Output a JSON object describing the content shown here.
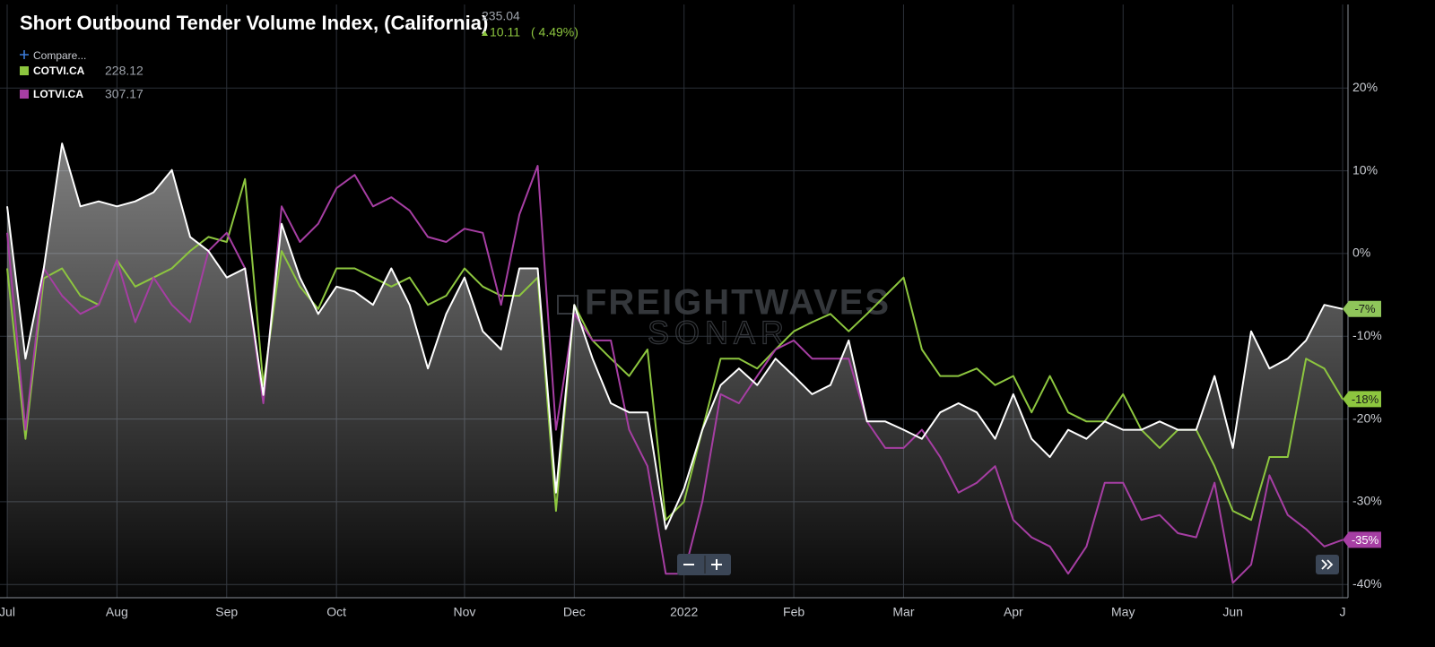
{
  "chart_data": {
    "type": "line",
    "title": "Short Outbound Tender Volume Index, (California)",
    "last_value": "235.04",
    "change": "10.11",
    "change_pct": "( 4.49%)",
    "compare": "Compare...",
    "watermark": [
      "FREIGHTWAVES",
      "SONAR"
    ],
    "categories": [
      "Jul",
      null,
      null,
      null,
      null,
      null,
      "Aug",
      null,
      null,
      null,
      null,
      null,
      "Sep",
      null,
      null,
      null,
      null,
      null,
      "Oct",
      null,
      null,
      null,
      null,
      null,
      null,
      "Nov",
      null,
      null,
      null,
      null,
      null,
      "Dec",
      null,
      null,
      null,
      null,
      null,
      "2022",
      null,
      null,
      null,
      null,
      null,
      "Feb",
      null,
      null,
      null,
      null,
      null,
      "Mar",
      null,
      null,
      null,
      null,
      null,
      "Apr",
      null,
      null,
      null,
      null,
      null,
      "May",
      null,
      null,
      null,
      null,
      null,
      "Jun",
      null,
      null,
      null,
      null,
      null,
      "J"
    ],
    "ylim": [
      -41.6,
      30.1
    ],
    "yticks": [
      {
        "value": -40,
        "label": "-40%"
      },
      {
        "value": -30,
        "label": "-30%"
      },
      {
        "value": -20,
        "label": "-20%"
      },
      {
        "value": -10,
        "label": "-10%"
      },
      {
        "value": 0,
        "label": "0%"
      },
      {
        "value": 10,
        "label": "10%"
      },
      {
        "value": 20,
        "label": "20%"
      }
    ],
    "grid": true,
    "series": [
      {
        "color": "#ffffff",
        "area": true,
        "badge": "-7%",
        "badge_color": "#8fc55a",
        "values": [
          5.7,
          -12.7,
          -1.8,
          13.3,
          5.7,
          6.3,
          5.7,
          6.3,
          7.4,
          10.1,
          2.0,
          0.3,
          -2.9,
          -1.8,
          -17.1,
          3.6,
          -2.9,
          -7.3,
          -4.0,
          -4.6,
          -6.2,
          -1.8,
          -6.2,
          -13.9,
          -7.3,
          -2.9,
          -9.4,
          -11.6,
          -1.8,
          -1.8,
          -28.9,
          -6.2,
          -12.7,
          -18.1,
          -19.2,
          -19.2,
          -33.3,
          -28.4,
          -21.3,
          -15.9,
          -13.9,
          -15.9,
          -12.7,
          -14.8,
          -17.0,
          -15.9,
          -10.5,
          -20.3,
          -20.3,
          -21.3,
          -22.4,
          -19.2,
          -18.1,
          -19.2,
          -22.4,
          -17.0,
          -22.4,
          -24.6,
          -21.3,
          -22.4,
          -20.3,
          -21.3,
          -21.3,
          -20.3,
          -21.3,
          -21.3,
          -14.8,
          -23.5,
          -9.4,
          -13.9,
          -12.7,
          -10.5,
          -6.2,
          -6.7
        ]
      },
      {
        "name": "COTVI.CA",
        "legend_value": "228.12",
        "color": "#8dc63f",
        "badge": "-18%",
        "badge_color": "#8dc63f",
        "values": [
          -1.8,
          -22.4,
          -3.0,
          -1.8,
          -5.1,
          -6.2,
          -0.8,
          -4.0,
          -2.9,
          -1.8,
          0.3,
          2.0,
          1.4,
          9.0,
          -15.9,
          0.3,
          -4.0,
          -6.7,
          -1.8,
          -1.8,
          -2.9,
          -4.0,
          -2.9,
          -6.2,
          -5.1,
          -1.8,
          -4.0,
          -5.1,
          -5.1,
          -2.9,
          -31.1,
          -6.2,
          -10.5,
          -12.7,
          -14.8,
          -11.6,
          -32.2,
          -30.0,
          -21.3,
          -12.7,
          -12.7,
          -13.9,
          -11.6,
          -9.4,
          -8.3,
          -7.3,
          -9.4,
          -7.3,
          -5.1,
          -2.9,
          -11.6,
          -14.8,
          -14.8,
          -13.9,
          -15.9,
          -14.8,
          -19.2,
          -14.8,
          -19.2,
          -20.3,
          -20.3,
          -17.0,
          -21.3,
          -23.5,
          -21.3,
          -21.3,
          -25.7,
          -31.1,
          -32.2,
          -24.6,
          -24.6,
          -12.7,
          -13.9,
          -17.6
        ]
      },
      {
        "name": "LOTVI.CA",
        "legend_value": "307.17",
        "color": "#a63ea3",
        "badge": "-35%",
        "badge_color": "#a63ea3",
        "values": [
          2.5,
          -21.3,
          -1.8,
          -5.1,
          -7.3,
          -6.2,
          -0.8,
          -8.3,
          -2.9,
          -6.2,
          -8.3,
          0.3,
          2.5,
          -1.8,
          -18.1,
          5.7,
          1.4,
          3.6,
          7.9,
          9.5,
          5.7,
          6.8,
          5.2,
          2.0,
          1.4,
          3.0,
          2.5,
          -6.2,
          4.7,
          10.6,
          -21.3,
          -7.3,
          -10.5,
          -10.5,
          -21.3,
          -25.7,
          -38.7,
          -38.7,
          -30.0,
          -17.0,
          -18.1,
          -14.8,
          -11.6,
          -10.5,
          -12.7,
          -12.7,
          -12.7,
          -20.3,
          -23.5,
          -23.5,
          -21.3,
          -24.6,
          -28.9,
          -27.7,
          -25.7,
          -32.2,
          -34.3,
          -35.4,
          -38.7,
          -35.4,
          -27.7,
          -27.7,
          -32.2,
          -31.6,
          -33.8,
          -34.3,
          -27.7,
          -39.8,
          -37.6,
          -26.8,
          -31.6,
          -33.3,
          -35.4,
          -34.6
        ]
      }
    ]
  }
}
